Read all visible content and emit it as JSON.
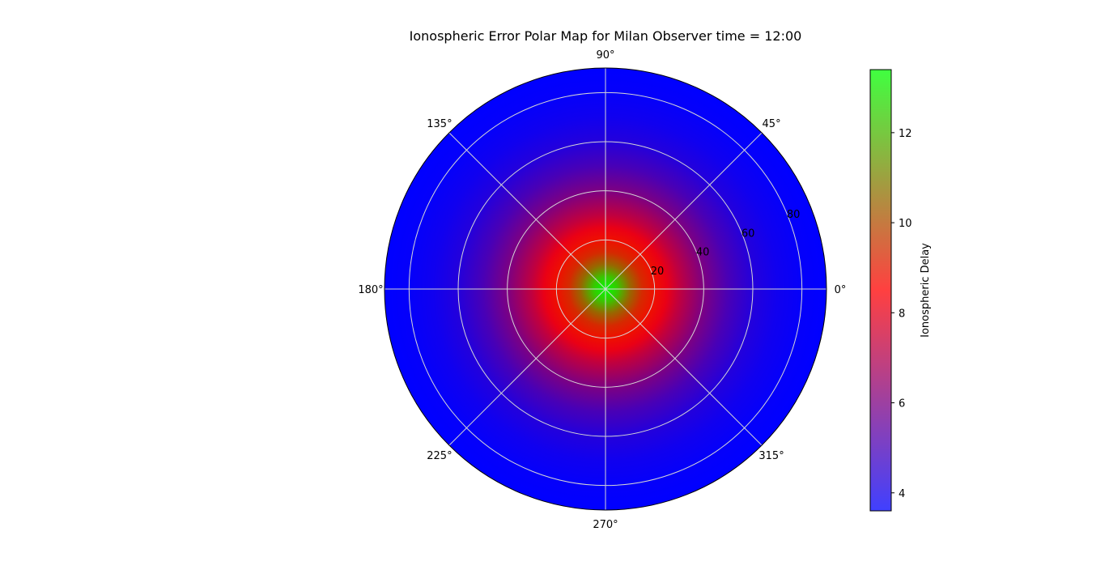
{
  "chart_data": {
    "type": "heatmap",
    "projection": "polar",
    "title": "Ionospheric Error Polar Map for Milan Observer time = 12:00",
    "theta_ticks": [
      {
        "deg": 0,
        "label": "0°"
      },
      {
        "deg": 45,
        "label": "45°"
      },
      {
        "deg": 90,
        "label": "90°"
      },
      {
        "deg": 135,
        "label": "135°"
      },
      {
        "deg": 180,
        "label": "180°"
      },
      {
        "deg": 225,
        "label": "225°"
      },
      {
        "deg": 270,
        "label": "270°"
      },
      {
        "deg": 315,
        "label": "315°"
      }
    ],
    "r_ticks": [
      {
        "value": 20,
        "label": "20"
      },
      {
        "value": 40,
        "label": "40"
      },
      {
        "value": 60,
        "label": "60"
      },
      {
        "value": 80,
        "label": "80"
      }
    ],
    "r_label_angle_deg": 22.5,
    "r_max": 90,
    "r_data_max": 90,
    "grid": true,
    "colorbar": {
      "label": "Ionospheric Delay",
      "min": 3.6,
      "max": 13.4,
      "ticks": [
        {
          "value": 4,
          "label": "4"
        },
        {
          "value": 6,
          "label": "6"
        },
        {
          "value": 8,
          "label": "8"
        },
        {
          "value": 10,
          "label": "10"
        },
        {
          "value": 12,
          "label": "12"
        }
      ],
      "colors": [
        "#0000ff",
        "#ff0000",
        "#00ff00"
      ],
      "alpha": 0.75
    },
    "radial_profile": {
      "r": [
        0,
        5,
        10,
        15,
        20,
        25,
        30,
        40,
        50,
        60,
        70,
        80,
        90
      ],
      "value": [
        13.4,
        12.3,
        10.5,
        9.3,
        8.8,
        8.1,
        7.3,
        6.0,
        5.0,
        4.3,
        3.9,
        3.7,
        3.6
      ]
    },
    "legend": "colorbar right"
  }
}
